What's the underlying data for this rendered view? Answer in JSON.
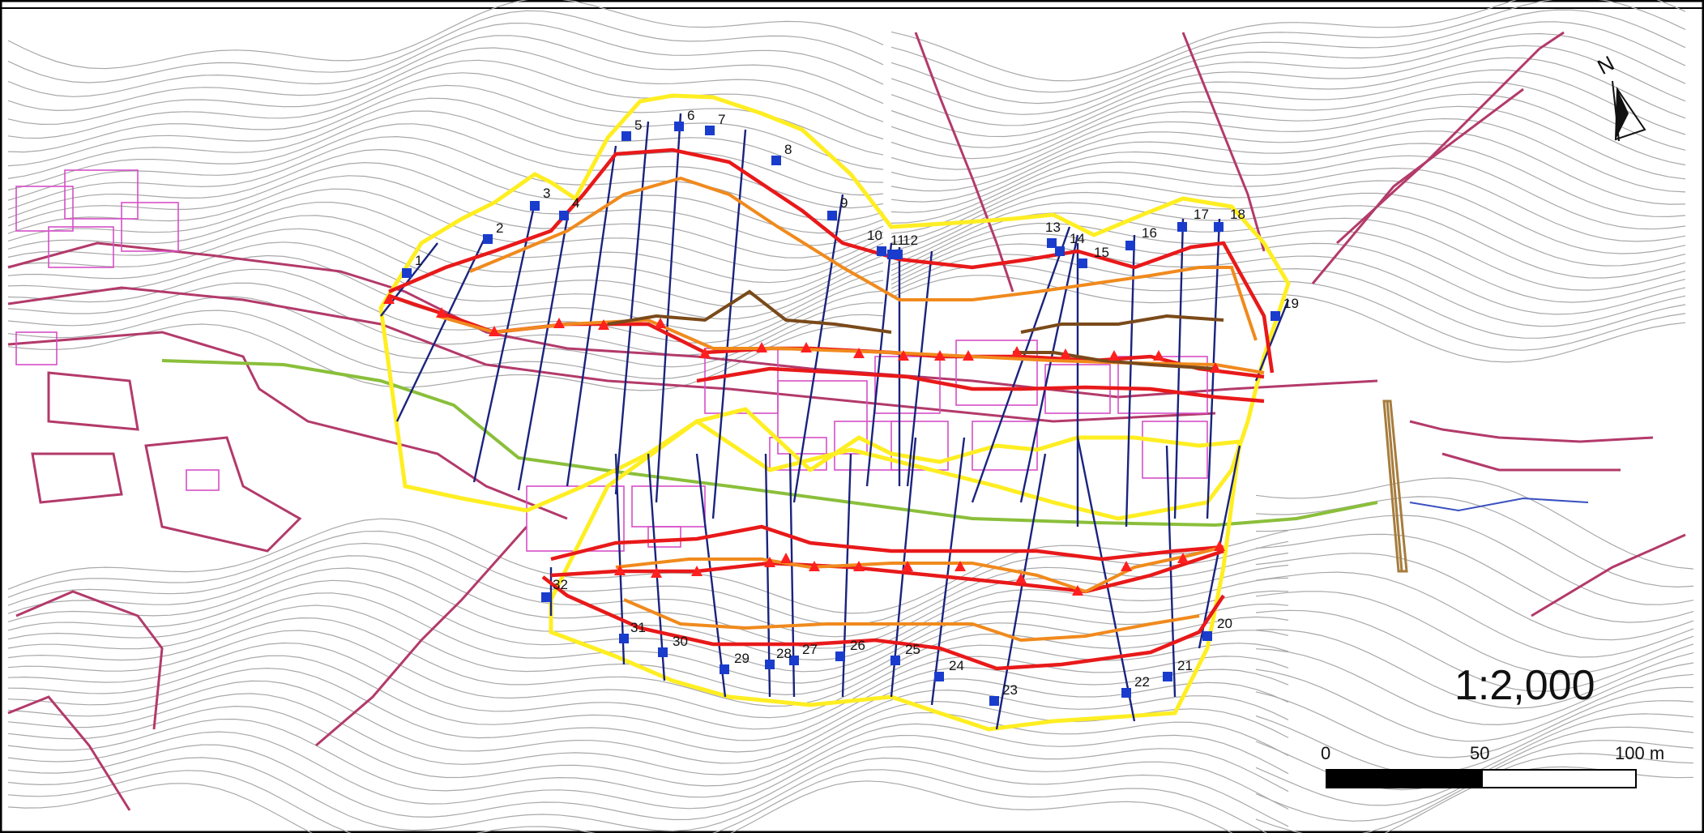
{
  "map": {
    "scale_ratio": "1:2,000",
    "north_label": "N",
    "scale_bar": {
      "label_0": "0",
      "label_50": "50",
      "label_100": "100 m"
    },
    "colors": {
      "contour": "#9a9a9a",
      "contour_dark": "#555555",
      "road": "#b33a6a",
      "building": "#d64fc7",
      "boundary": "#ffee22",
      "section_line": "#1a237e",
      "survey_point": "#1a3ccc",
      "line_red": "#e8191a",
      "line_orange": "#f08a1d",
      "line_brown": "#7a4a1a",
      "marker_red": "#ff1f1f",
      "channel_green": "#8abf3a",
      "bridge": "#a67c3d"
    },
    "points": [
      {
        "label": "1"
      },
      {
        "label": "2"
      },
      {
        "label": "3"
      },
      {
        "label": "4"
      },
      {
        "label": "5"
      },
      {
        "label": "6"
      },
      {
        "label": "7"
      },
      {
        "label": "8"
      },
      {
        "label": "9"
      },
      {
        "label": "10"
      },
      {
        "label": "11"
      },
      {
        "label": "12"
      },
      {
        "label": "13"
      },
      {
        "label": "14"
      },
      {
        "label": "15"
      },
      {
        "label": "16"
      },
      {
        "label": "17"
      },
      {
        "label": "18"
      },
      {
        "label": "19"
      },
      {
        "label": "20"
      },
      {
        "label": "21"
      },
      {
        "label": "22"
      },
      {
        "label": "23"
      },
      {
        "label": "24"
      },
      {
        "label": "25"
      },
      {
        "label": "26"
      },
      {
        "label": "27"
      },
      {
        "label": "28"
      },
      {
        "label": "29"
      },
      {
        "label": "30"
      },
      {
        "label": "31"
      },
      {
        "label": "32"
      }
    ]
  }
}
